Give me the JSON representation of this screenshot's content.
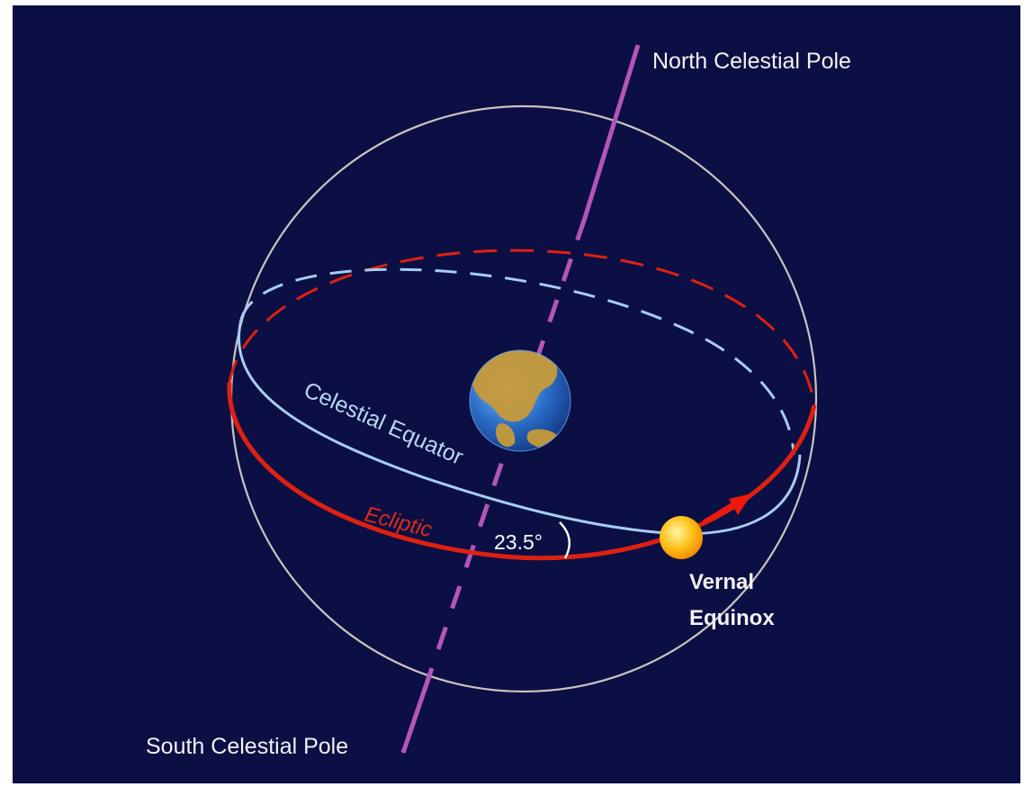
{
  "labels": {
    "north_pole": "North Celestial Pole",
    "south_pole": "South Celestial Pole",
    "celestial_equator": "Celestial Equator",
    "ecliptic": "Ecliptic",
    "tilt_angle": "23.5°",
    "vernal_line1": "Vernal",
    "vernal_line2": "Equinox"
  },
  "colors": {
    "background": "#0b0f44",
    "sphere_outline": "#c9c3c0",
    "celestial_axis": "#b455b8",
    "celestial_equator": "#a7cdf0",
    "ecliptic": "#dd2111",
    "label_text": "#f2f2f2",
    "ecliptic_label": "#e02a18",
    "equator_label": "#b8d8f5",
    "sun": "#ffc21a",
    "earth_ocean": "#2c6fc9",
    "earth_land": "#c79a3a"
  },
  "icons": {
    "earth": "earth-icon",
    "sun": "sun-icon",
    "motion_arrow": "arrow-icon"
  }
}
